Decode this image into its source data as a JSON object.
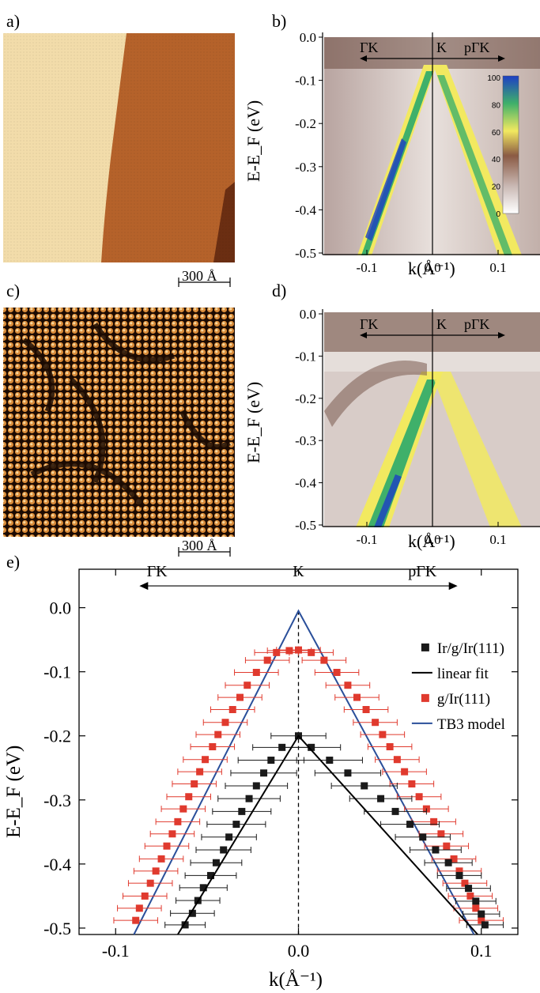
{
  "panels": {
    "a": {
      "label": "a)",
      "scale_bar": "300 Å"
    },
    "b": {
      "label": "b)",
      "ylabel": "E-E_F (eV)",
      "xlabel": "k(Å⁻¹)",
      "direction_labels": [
        "ΓK",
        "K",
        "pΓK"
      ],
      "yticks": [
        "0.0",
        "-0.1",
        "-0.2",
        "-0.3",
        "-0.4",
        "-0.5"
      ],
      "xticks": [
        "-0.1",
        "0.0",
        "0.1"
      ],
      "colorbar_ticks": [
        "100",
        "80",
        "60",
        "40",
        "20",
        "0"
      ]
    },
    "c": {
      "label": "c)",
      "scale_bar": "300 Å"
    },
    "d": {
      "label": "d)",
      "ylabel": "E-E_F (eV)",
      "xlabel": "k(Å⁻¹)",
      "direction_labels": [
        "ΓK",
        "K",
        "pΓK"
      ],
      "yticks": [
        "0.0",
        "-0.1",
        "-0.2",
        "-0.3",
        "-0.4",
        "-0.5"
      ],
      "xticks": [
        "-0.1",
        "0.0",
        "0.1"
      ]
    },
    "e": {
      "label": "e)"
    }
  },
  "chart_data": {
    "type": "scatter",
    "xlabel": "k(Å⁻¹)",
    "ylabel": "E-E_F (eV)",
    "xlim": [
      -0.12,
      0.12
    ],
    "ylim": [
      -0.51,
      0.06
    ],
    "xticks": [
      "-0.1",
      "0.0",
      "0.1"
    ],
    "yticks": [
      "0.0",
      "-0.1",
      "-0.2",
      "-0.3",
      "-0.4",
      "-0.5"
    ],
    "direction_labels": [
      "ΓK",
      "K",
      "pΓK"
    ],
    "legend": {
      "position": "right",
      "entries": [
        "Ir/g/Ir(111)",
        "linear fit",
        "g/Ir(111)",
        "TB3 model"
      ]
    },
    "colors": {
      "black_series": "#1a1a1a",
      "red_series": "#e03a2e",
      "tb3": "#2a4f9a",
      "fit": "#000000"
    },
    "series": [
      {
        "name": "Ir/g/Ir(111)",
        "points": [
          [
            -0.062,
            -0.495
          ],
          [
            -0.058,
            -0.477
          ],
          [
            -0.055,
            -0.457
          ],
          [
            -0.052,
            -0.437
          ],
          [
            -0.048,
            -0.418
          ],
          [
            -0.045,
            -0.398
          ],
          [
            -0.041,
            -0.378
          ],
          [
            -0.038,
            -0.358
          ],
          [
            -0.034,
            -0.338
          ],
          [
            -0.031,
            -0.318
          ],
          [
            -0.027,
            -0.298
          ],
          [
            -0.023,
            -0.278
          ],
          [
            -0.019,
            -0.258
          ],
          [
            -0.015,
            -0.238
          ],
          [
            -0.009,
            -0.218
          ],
          [
            0.0,
            -0.2
          ],
          [
            0.007,
            -0.218
          ],
          [
            0.017,
            -0.238
          ],
          [
            0.027,
            -0.258
          ],
          [
            0.036,
            -0.278
          ],
          [
            0.045,
            -0.298
          ],
          [
            0.053,
            -0.318
          ],
          [
            0.061,
            -0.338
          ],
          [
            0.068,
            -0.358
          ],
          [
            0.075,
            -0.378
          ],
          [
            0.082,
            -0.398
          ],
          [
            0.088,
            -0.418
          ],
          [
            0.093,
            -0.438
          ],
          [
            0.097,
            -0.458
          ],
          [
            0.1,
            -0.478
          ],
          [
            0.102,
            -0.495
          ]
        ],
        "xerr": [
          0.011,
          0.012,
          0.012,
          0.013,
          0.014,
          0.014,
          0.015,
          0.015,
          0.016,
          0.016,
          0.017,
          0.017,
          0.018,
          0.018,
          0.016,
          0.015,
          0.016,
          0.018,
          0.018,
          0.018,
          0.017,
          0.017,
          0.016,
          0.015,
          0.014,
          0.013,
          0.012,
          0.012,
          0.011,
          0.01,
          0.01
        ]
      },
      {
        "name": "g/Ir(111)",
        "points": [
          [
            -0.089,
            -0.488
          ],
          [
            -0.087,
            -0.469
          ],
          [
            -0.084,
            -0.45
          ],
          [
            -0.081,
            -0.43
          ],
          [
            -0.078,
            -0.411
          ],
          [
            -0.075,
            -0.392
          ],
          [
            -0.072,
            -0.372
          ],
          [
            -0.069,
            -0.353
          ],
          [
            -0.066,
            -0.334
          ],
          [
            -0.063,
            -0.314
          ],
          [
            -0.06,
            -0.295
          ],
          [
            -0.057,
            -0.275
          ],
          [
            -0.054,
            -0.256
          ],
          [
            -0.051,
            -0.237
          ],
          [
            -0.047,
            -0.217
          ],
          [
            -0.044,
            -0.198
          ],
          [
            -0.04,
            -0.179
          ],
          [
            -0.036,
            -0.159
          ],
          [
            -0.032,
            -0.14
          ],
          [
            -0.028,
            -0.121
          ],
          [
            -0.023,
            -0.101
          ],
          [
            -0.017,
            -0.082
          ],
          [
            -0.012,
            -0.07
          ],
          [
            -0.005,
            -0.067
          ],
          [
            0.0,
            -0.066
          ],
          [
            0.007,
            -0.07
          ],
          [
            0.014,
            -0.082
          ],
          [
            0.021,
            -0.101
          ],
          [
            0.027,
            -0.121
          ],
          [
            0.032,
            -0.14
          ],
          [
            0.037,
            -0.159
          ],
          [
            0.042,
            -0.179
          ],
          [
            0.046,
            -0.198
          ],
          [
            0.05,
            -0.217
          ],
          [
            0.054,
            -0.237
          ],
          [
            0.058,
            -0.256
          ],
          [
            0.062,
            -0.275
          ],
          [
            0.066,
            -0.295
          ],
          [
            0.07,
            -0.314
          ],
          [
            0.074,
            -0.334
          ],
          [
            0.078,
            -0.353
          ],
          [
            0.081,
            -0.372
          ],
          [
            0.085,
            -0.392
          ],
          [
            0.088,
            -0.411
          ],
          [
            0.091,
            -0.43
          ],
          [
            0.094,
            -0.45
          ],
          [
            0.097,
            -0.469
          ],
          [
            0.1,
            -0.488
          ]
        ],
        "xerr": 0.012
      }
    ],
    "lines": {
      "linear_fit": [
        [
          -0.066,
          -0.51
        ],
        [
          0.0,
          -0.2
        ],
        [
          0.098,
          -0.51
        ]
      ],
      "tb3_model": [
        [
          -0.09,
          -0.51
        ],
        [
          0.0,
          -0.005
        ],
        [
          0.096,
          -0.51
        ]
      ],
      "k_line_x": 0.0
    }
  }
}
